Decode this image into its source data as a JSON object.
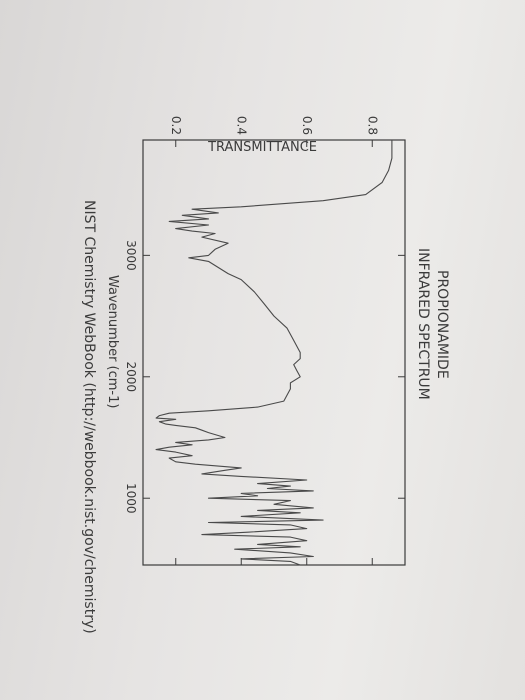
{
  "chart_data": {
    "type": "line",
    "title": "PROPIONAMIDE",
    "subtitle": "INFRARED SPECTRUM",
    "xlabel": "Wavenumber (cm-1)",
    "ylabel": "TRANSMITTANCE",
    "footer": "NIST Chemistry WebBook (http://webbook.nist.gov/chemistry)",
    "x_reversed": true,
    "xlim": [
      3950,
      450
    ],
    "ylim": [
      0.1,
      0.9
    ],
    "x_ticks": [
      3000,
      2000,
      1000
    ],
    "y_ticks": [
      0.2,
      0.4,
      0.6,
      0.8
    ],
    "grid": false,
    "series": [
      {
        "x": [
          3950,
          3800,
          3700,
          3600,
          3500,
          3450,
          3400,
          3380,
          3350,
          3330,
          3300,
          3280,
          3250,
          3220,
          3200,
          3180,
          3150,
          3100,
          3050,
          3000,
          2980,
          2950,
          2900,
          2850,
          2800,
          2700,
          2600,
          2500,
          2400,
          2300,
          2200,
          2150,
          2100,
          2050,
          2000,
          1950,
          1900,
          1850,
          1800,
          1750,
          1720,
          1700,
          1680,
          1660,
          1650,
          1630,
          1610,
          1600,
          1580,
          1560,
          1540,
          1500,
          1480,
          1460,
          1440,
          1420,
          1400,
          1380,
          1350,
          1330,
          1300,
          1280,
          1250,
          1230,
          1200,
          1180,
          1150,
          1120,
          1100,
          1080,
          1060,
          1040,
          1020,
          1000,
          980,
          950,
          920,
          900,
          880,
          850,
          820,
          800,
          780,
          750,
          720,
          700,
          680,
          650,
          620,
          600,
          580,
          550,
          520,
          500,
          480,
          450
        ],
        "y": [
          0.86,
          0.86,
          0.85,
          0.83,
          0.78,
          0.65,
          0.4,
          0.25,
          0.33,
          0.22,
          0.3,
          0.18,
          0.3,
          0.2,
          0.25,
          0.32,
          0.28,
          0.36,
          0.32,
          0.3,
          0.24,
          0.3,
          0.33,
          0.36,
          0.4,
          0.44,
          0.47,
          0.5,
          0.54,
          0.56,
          0.58,
          0.58,
          0.56,
          0.57,
          0.58,
          0.55,
          0.55,
          0.54,
          0.53,
          0.45,
          0.3,
          0.18,
          0.15,
          0.14,
          0.2,
          0.15,
          0.17,
          0.2,
          0.26,
          0.28,
          0.3,
          0.35,
          0.3,
          0.2,
          0.25,
          0.18,
          0.14,
          0.2,
          0.25,
          0.18,
          0.2,
          0.26,
          0.4,
          0.35,
          0.28,
          0.4,
          0.6,
          0.45,
          0.55,
          0.48,
          0.62,
          0.4,
          0.45,
          0.3,
          0.55,
          0.5,
          0.62,
          0.45,
          0.58,
          0.4,
          0.65,
          0.3,
          0.55,
          0.6,
          0.42,
          0.28,
          0.55,
          0.6,
          0.45,
          0.58,
          0.38,
          0.55,
          0.62,
          0.4,
          0.55,
          0.58
        ]
      }
    ]
  }
}
